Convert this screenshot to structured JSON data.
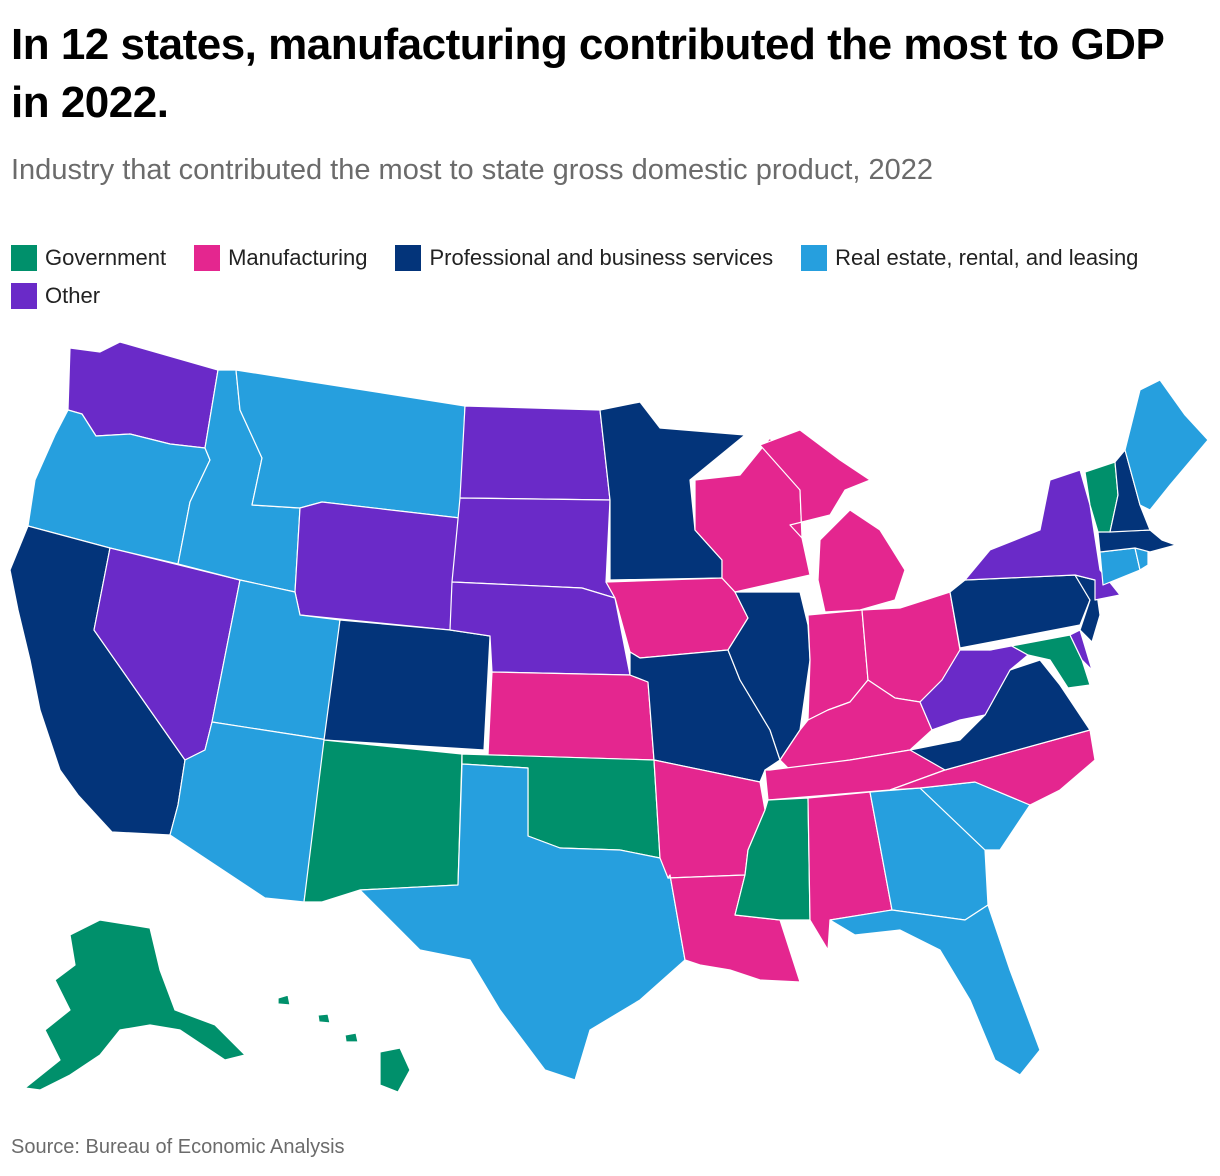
{
  "title": "In 12 states, manufacturing contributed the most to GDP in 2022.",
  "subtitle": "Industry that contributed the most to state gross domestic product, 2022",
  "source": "Source: Bureau of Economic Analysis",
  "legend": [
    {
      "key": "gov",
      "label": "Government",
      "color": "#00906b"
    },
    {
      "key": "mfg",
      "label": "Manufacturing",
      "color": "#e4268f"
    },
    {
      "key": "pbs",
      "label": "Professional and business services",
      "color": "#03347a"
    },
    {
      "key": "re",
      "label": "Real estate, rental, and leasing",
      "color": "#269fde"
    },
    {
      "key": "oth",
      "label": "Other",
      "color": "#6a2ac8"
    }
  ],
  "states": [
    {
      "abbr": "WA",
      "category": "oth"
    },
    {
      "abbr": "OR",
      "category": "re"
    },
    {
      "abbr": "CA",
      "category": "pbs"
    },
    {
      "abbr": "NV",
      "category": "oth"
    },
    {
      "abbr": "ID",
      "category": "re"
    },
    {
      "abbr": "MT",
      "category": "re"
    },
    {
      "abbr": "WY",
      "category": "oth"
    },
    {
      "abbr": "UT",
      "category": "re"
    },
    {
      "abbr": "AZ",
      "category": "re"
    },
    {
      "abbr": "CO",
      "category": "pbs"
    },
    {
      "abbr": "NM",
      "category": "gov"
    },
    {
      "abbr": "ND",
      "category": "oth"
    },
    {
      "abbr": "SD",
      "category": "oth"
    },
    {
      "abbr": "NE",
      "category": "oth"
    },
    {
      "abbr": "KS",
      "category": "mfg"
    },
    {
      "abbr": "OK",
      "category": "gov"
    },
    {
      "abbr": "TX",
      "category": "re"
    },
    {
      "abbr": "MN",
      "category": "pbs"
    },
    {
      "abbr": "IA",
      "category": "mfg"
    },
    {
      "abbr": "MO",
      "category": "pbs"
    },
    {
      "abbr": "AR",
      "category": "mfg"
    },
    {
      "abbr": "LA",
      "category": "mfg"
    },
    {
      "abbr": "WI",
      "category": "mfg"
    },
    {
      "abbr": "IL",
      "category": "pbs"
    },
    {
      "abbr": "MI",
      "category": "mfg"
    },
    {
      "abbr": "IN",
      "category": "mfg"
    },
    {
      "abbr": "OH",
      "category": "mfg"
    },
    {
      "abbr": "KY",
      "category": "mfg"
    },
    {
      "abbr": "TN",
      "category": "mfg"
    },
    {
      "abbr": "MS",
      "category": "gov"
    },
    {
      "abbr": "AL",
      "category": "mfg"
    },
    {
      "abbr": "GA",
      "category": "re"
    },
    {
      "abbr": "FL",
      "category": "re"
    },
    {
      "abbr": "SC",
      "category": "re"
    },
    {
      "abbr": "NC",
      "category": "mfg"
    },
    {
      "abbr": "VA",
      "category": "pbs"
    },
    {
      "abbr": "WV",
      "category": "oth"
    },
    {
      "abbr": "MD",
      "category": "gov"
    },
    {
      "abbr": "DE",
      "category": "oth"
    },
    {
      "abbr": "NJ",
      "category": "pbs"
    },
    {
      "abbr": "PA",
      "category": "pbs"
    },
    {
      "abbr": "NY",
      "category": "oth"
    },
    {
      "abbr": "CT",
      "category": "re"
    },
    {
      "abbr": "RI",
      "category": "re"
    },
    {
      "abbr": "MA",
      "category": "pbs"
    },
    {
      "abbr": "VT",
      "category": "gov"
    },
    {
      "abbr": "NH",
      "category": "pbs"
    },
    {
      "abbr": "ME",
      "category": "re"
    },
    {
      "abbr": "AK",
      "category": "gov"
    },
    {
      "abbr": "HI",
      "category": "gov"
    }
  ]
}
